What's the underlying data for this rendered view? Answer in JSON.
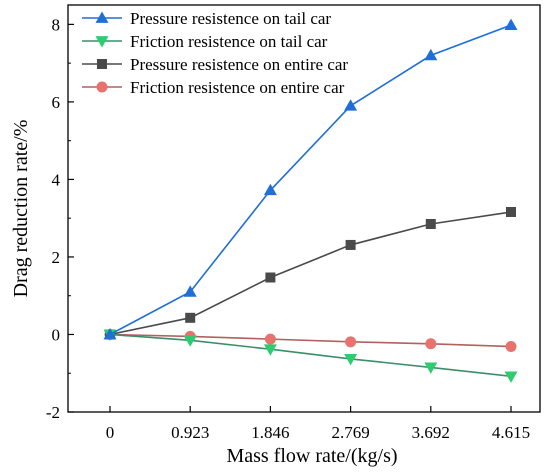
{
  "chart_data": {
    "type": "line",
    "title": "",
    "xlabel": "Mass flow rate/(kg/s)",
    "ylabel": "Drag reduction rate/%",
    "categories": [
      "0",
      "0.923",
      "1.846",
      "2.769",
      "3.692",
      "4.615"
    ],
    "ylim": [
      -2,
      8.5
    ],
    "yticks": [
      -2,
      0,
      2,
      4,
      6,
      8
    ],
    "grid": false,
    "legend_position": "top-left",
    "series": [
      {
        "name": "Pressure resistence on tail car",
        "marker": "triangle-up",
        "color": "#1f6fd6",
        "values": [
          0,
          1.1,
          3.72,
          5.9,
          7.2,
          7.98
        ]
      },
      {
        "name": "Friction resistence on tail car",
        "marker": "triangle-down",
        "color": "#3a8f6a",
        "marker_color": "#2ecc71",
        "values": [
          0,
          -0.15,
          -0.38,
          -0.63,
          -0.85,
          -1.08
        ]
      },
      {
        "name": "Pressure resistence on entire car",
        "marker": "square",
        "color": "#4a4a4a",
        "values": [
          0,
          0.43,
          1.47,
          2.31,
          2.85,
          3.16
        ]
      },
      {
        "name": "Friction resistence on entire car",
        "marker": "circle",
        "color": "#b26060",
        "marker_color": "#e8726e",
        "values": [
          0,
          -0.05,
          -0.12,
          -0.19,
          -0.24,
          -0.31
        ]
      }
    ]
  }
}
